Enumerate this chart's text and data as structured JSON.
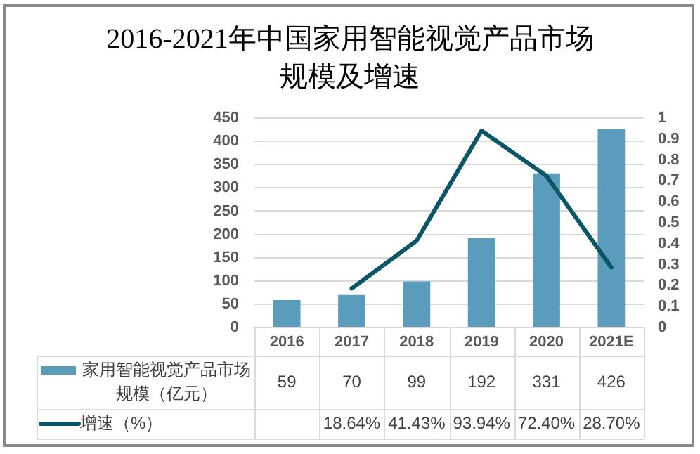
{
  "chart_data": {
    "type": "bar",
    "title": "2016-2021年中国家用智能视觉产品市场规模及增速",
    "categories": [
      "2016",
      "2017",
      "2018",
      "2019",
      "2020",
      "2021E"
    ],
    "series": [
      {
        "name": "家用智能视觉产品市场规模（亿元）",
        "color": "#5b9bbb",
        "values": [
          59,
          70,
          99,
          192,
          331,
          426
        ],
        "value_labels": [
          "59",
          "70",
          "99",
          "192",
          "331",
          "426"
        ]
      },
      {
        "name": "增速（%）",
        "type": "line",
        "axis": "y2",
        "color": "#0c5567",
        "values": [
          null,
          0.1864,
          0.4143,
          0.9394,
          0.724,
          0.287
        ],
        "value_labels": [
          null,
          "18.64%",
          "41.43%",
          "93.94%",
          "72.40%",
          "28.70%"
        ]
      }
    ],
    "ylim": [
      0,
      450
    ],
    "yticks": [
      0,
      50,
      100,
      150,
      200,
      250,
      300,
      350,
      400,
      450
    ],
    "y2lim": [
      0,
      1
    ],
    "y2ticks": [
      0,
      0.1,
      0.2,
      0.3,
      0.4,
      0.5,
      0.6,
      0.7,
      0.8,
      0.9,
      1
    ],
    "grid": "y",
    "legend": "bottom",
    "marker": "none"
  }
}
